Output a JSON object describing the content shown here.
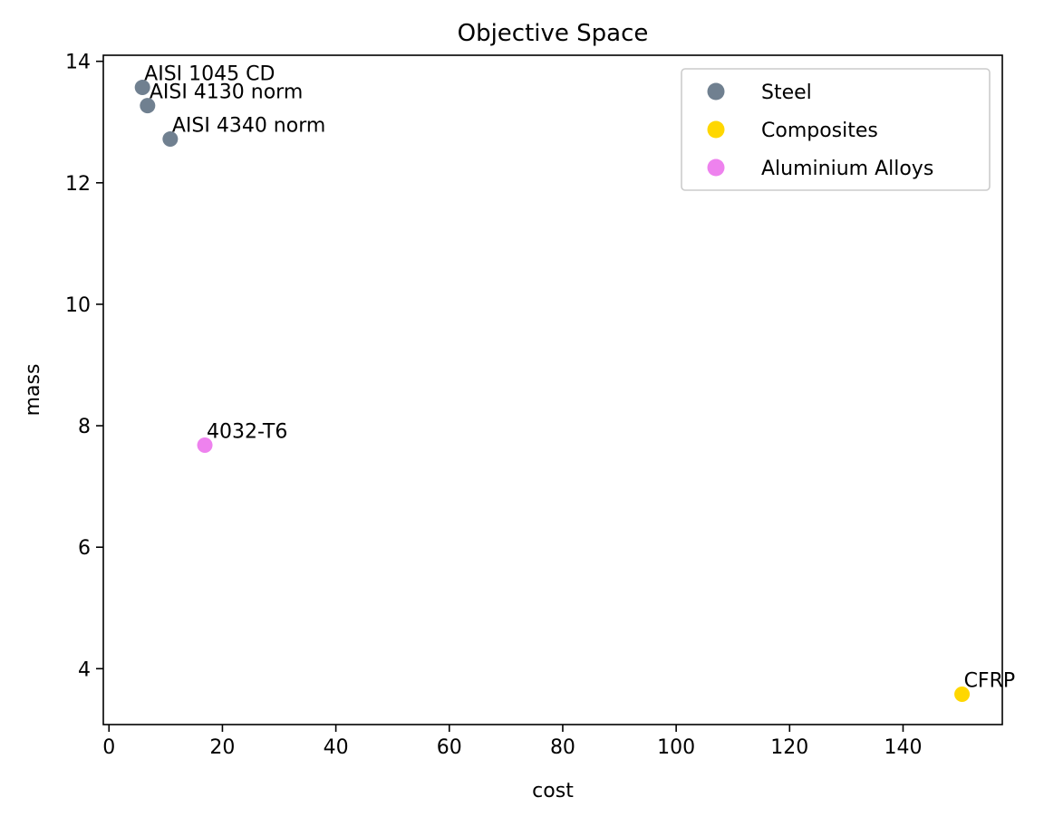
{
  "chart_data": {
    "type": "scatter",
    "title": "Objective Space",
    "xlabel": "cost",
    "ylabel": "mass",
    "xlim": [
      -1,
      157.5
    ],
    "ylim": [
      3.08,
      14.1
    ],
    "xticks": [
      0,
      20,
      40,
      60,
      80,
      100,
      120,
      140
    ],
    "yticks": [
      4,
      6,
      8,
      10,
      12,
      14
    ],
    "grid": false,
    "legend_position": "top-right",
    "series": [
      {
        "name": "Steel",
        "color": "#708090",
        "points": [
          {
            "x": 5.9,
            "y": 13.57,
            "label": "AISI 1045 CD"
          },
          {
            "x": 6.8,
            "y": 13.27,
            "label": "AISI 4130 norm"
          },
          {
            "x": 10.8,
            "y": 12.72,
            "label": "AISI 4340 norm"
          }
        ]
      },
      {
        "name": "Composites",
        "color": "#FFD700",
        "points": [
          {
            "x": 150.4,
            "y": 3.58,
            "label": "CFRP"
          }
        ]
      },
      {
        "name": "Aluminium Alloys",
        "color": "#EE82EE",
        "points": [
          {
            "x": 16.9,
            "y": 7.68,
            "label": "4032-T6"
          }
        ]
      }
    ]
  }
}
